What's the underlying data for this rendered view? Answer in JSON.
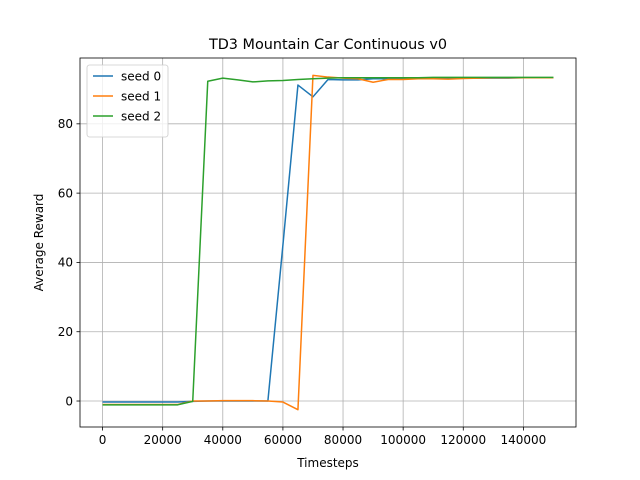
{
  "chart_data": {
    "type": "line",
    "title": "TD3 Mountain Car Continuous v0",
    "xlabel": "Timesteps",
    "ylabel": "Average Reward",
    "xlim": [
      -7500,
      157500
    ],
    "ylim": [
      -7.5,
      99
    ],
    "xticks": [
      0,
      20000,
      40000,
      60000,
      80000,
      100000,
      120000,
      140000
    ],
    "yticks": [
      0,
      20,
      40,
      60,
      80
    ],
    "grid": true,
    "legend_position": "top-left",
    "series": [
      {
        "name": "seed 0",
        "color": "#1f77b4",
        "x": [
          0,
          5000,
          10000,
          15000,
          20000,
          25000,
          30000,
          35000,
          40000,
          45000,
          50000,
          55000,
          60000,
          65000,
          70000,
          75000,
          80000,
          85000,
          90000,
          95000,
          100000,
          105000,
          110000,
          115000,
          120000,
          125000,
          130000,
          135000,
          140000,
          145000,
          150000
        ],
        "y": [
          -0.3,
          -0.3,
          -0.3,
          -0.3,
          -0.3,
          -0.3,
          -0.1,
          0,
          0,
          0,
          0,
          0,
          45,
          91.2,
          87.8,
          92.8,
          92.7,
          92.7,
          93,
          93,
          93,
          93.1,
          93.1,
          93.1,
          93.2,
          93.2,
          93.2,
          93.2,
          93.3,
          93.3,
          93.3
        ]
      },
      {
        "name": "seed 1",
        "color": "#ff7f0e",
        "x": [
          0,
          5000,
          10000,
          15000,
          20000,
          25000,
          30000,
          35000,
          40000,
          45000,
          50000,
          55000,
          60000,
          65000,
          70000,
          75000,
          80000,
          85000,
          90000,
          95000,
          100000,
          105000,
          110000,
          115000,
          120000,
          125000,
          130000,
          135000,
          140000,
          145000,
          150000
        ],
        "y": [
          -1,
          -1,
          -1,
          -1,
          -1,
          -1,
          0,
          0,
          0.1,
          0.1,
          0.1,
          0,
          -0.3,
          -2.5,
          94,
          93.5,
          93.2,
          93,
          92,
          92.8,
          92.8,
          93,
          93,
          92.9,
          93.1,
          93.2,
          93.3,
          93.3,
          93.3,
          93.3,
          93.3
        ]
      },
      {
        "name": "seed 2",
        "color": "#2ca02c",
        "x": [
          0,
          5000,
          10000,
          15000,
          20000,
          25000,
          30000,
          35000,
          40000,
          45000,
          50000,
          55000,
          60000,
          65000,
          70000,
          75000,
          80000,
          85000,
          90000,
          95000,
          100000,
          105000,
          110000,
          115000,
          120000,
          125000,
          130000,
          135000,
          140000,
          145000,
          150000
        ],
        "y": [
          -1.1,
          -1.1,
          -1.1,
          -1.1,
          -1.1,
          -1.1,
          -0.1,
          92.3,
          93.2,
          92.7,
          92.1,
          92.4,
          92.5,
          92.8,
          93,
          93.2,
          93.3,
          93.3,
          93.3,
          93.3,
          93.3,
          93.3,
          93.4,
          93.4,
          93.4,
          93.4,
          93.4,
          93.4,
          93.4,
          93.4,
          93.4
        ]
      }
    ]
  }
}
